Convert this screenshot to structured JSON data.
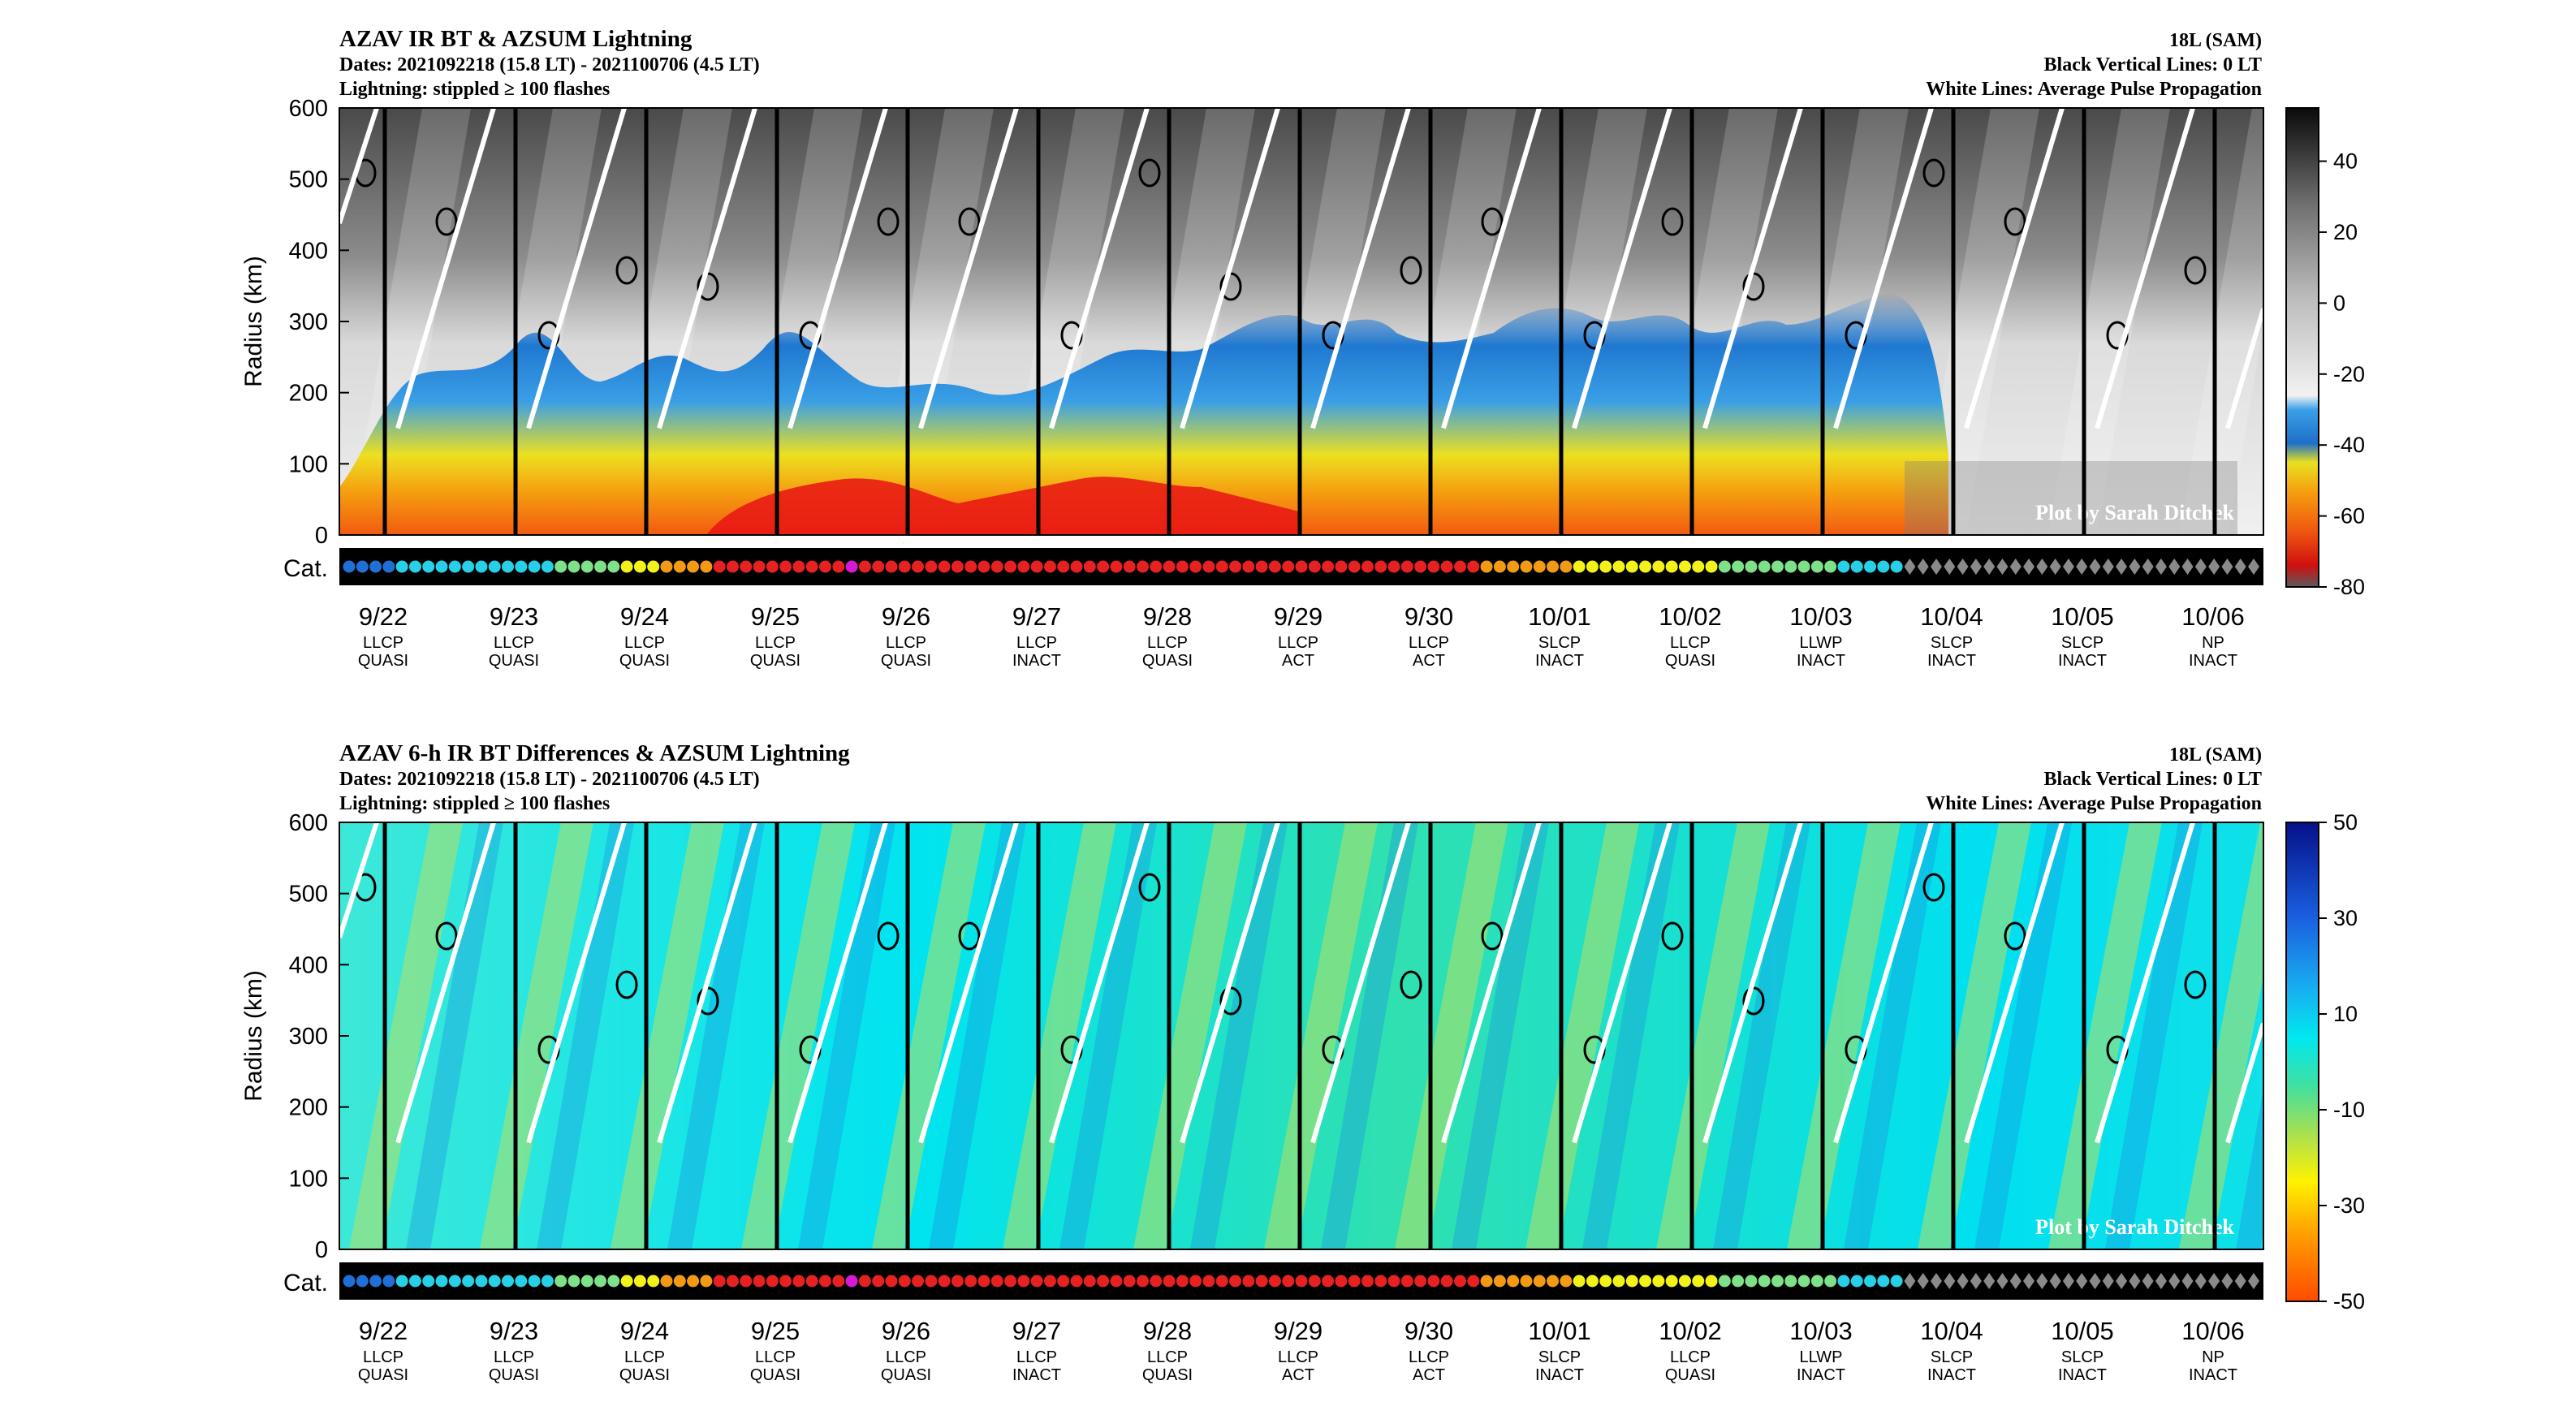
{
  "chart_data": [
    {
      "type": "heatmap",
      "title_lines": [
        "AZAV IR BT & AZSUM Lightning",
        "Dates: 2021092218 (15.8 LT) - 2021100706 (4.5 LT)",
        "Lightning: stippled ≥ 100 flashes"
      ],
      "right_title_lines": [
        "18L (SAM)",
        "Black Vertical Lines: 0 LT",
        "White Lines: Average Pulse Propagation"
      ],
      "ylabel": "Radius (km)",
      "yticks": [
        "0",
        "100",
        "200",
        "300",
        "400",
        "500",
        "600"
      ],
      "ylim": [
        0,
        600
      ],
      "colorbar": {
        "ticks": [
          "40",
          "20",
          "0",
          "-20",
          "-40",
          "-60",
          "-80"
        ],
        "range": [
          -80,
          55
        ]
      },
      "category_label": "Cat.",
      "watermark": "Plot by Sarah Ditchek"
    },
    {
      "type": "heatmap",
      "title_lines": [
        "AZAV 6-h IR BT Differences & AZSUM Lightning",
        "Dates: 2021092218 (15.8 LT) - 2021100706 (4.5 LT)",
        "Lightning: stippled ≥ 100 flashes"
      ],
      "right_title_lines": [
        "18L (SAM)",
        "Black Vertical Lines: 0 LT",
        "White Lines: Average Pulse Propagation"
      ],
      "ylabel": "Radius (km)",
      "yticks": [
        "0",
        "100",
        "200",
        "300",
        "400",
        "500",
        "600"
      ],
      "ylim": [
        0,
        600
      ],
      "colorbar": {
        "ticks": [
          "50",
          "30",
          "10",
          "-10",
          "-30",
          "-50"
        ],
        "range": [
          -50,
          50
        ]
      },
      "category_label": "Cat.",
      "watermark": "Plot by Sarah Ditchek"
    }
  ],
  "x_axis": {
    "dates": [
      "9/22",
      "9/23",
      "9/24",
      "9/25",
      "9/26",
      "9/27",
      "9/28",
      "9/29",
      "9/30",
      "10/01",
      "10/02",
      "10/03",
      "10/04",
      "10/05",
      "10/06"
    ],
    "regimes": [
      "LLCP",
      "LLCP",
      "LLCP",
      "LLCP",
      "LLCP",
      "LLCP",
      "LLCP",
      "LLCP",
      "LLCP",
      "SLCP",
      "LLCP",
      "LLWP",
      "SLCP",
      "SLCP",
      "NP"
    ],
    "activity": [
      "QUASI",
      "QUASI",
      "QUASI",
      "QUASI",
      "QUASI",
      "INACT",
      "QUASI",
      "ACT",
      "ACT",
      "INACT",
      "QUASI",
      "INACT",
      "INACT",
      "INACT",
      "INACT"
    ]
  },
  "category_strip": {
    "colors": {
      "TD": "#1f6fd6",
      "TS": "#27d0e6",
      "C1": "#7fe08a",
      "C2": "#f2f21a",
      "C3": "#f29a14",
      "C4": "#e62121",
      "C5": "#d41ad4",
      "Dissipated": "#8a8a8a"
    },
    "sequence": [
      "TD",
      "TD",
      "TD",
      "TD",
      "TS",
      "TS",
      "TS",
      "TS",
      "TS",
      "TS",
      "TS",
      "TS",
      "TS",
      "TS",
      "TS",
      "TS",
      "C1",
      "C1",
      "C1",
      "C1",
      "C1",
      "C2",
      "C2",
      "C2",
      "C3",
      "C3",
      "C3",
      "C3",
      "C4",
      "C4",
      "C4",
      "C4",
      "C4",
      "C4",
      "C4",
      "C4",
      "C4",
      "C4",
      "C5",
      "C4",
      "C4",
      "C4",
      "C4",
      "C4",
      "C4",
      "C4",
      "C4",
      "C4",
      "C4",
      "C4",
      "C4",
      "C4",
      "C4",
      "C4",
      "C4",
      "C4",
      "C4",
      "C4",
      "C4",
      "C4",
      "C4",
      "C4",
      "C4",
      "C4",
      "C4",
      "C4",
      "C4",
      "C4",
      "C4",
      "C4",
      "C4",
      "C4",
      "C4",
      "C4",
      "C4",
      "C4",
      "C4",
      "C4",
      "C4",
      "C4",
      "C4",
      "C4",
      "C4",
      "C4",
      "C4",
      "C4",
      "C3",
      "C3",
      "C3",
      "C3",
      "C3",
      "C3",
      "C3",
      "C2",
      "C2",
      "C2",
      "C2",
      "C2",
      "C2",
      "C2",
      "C2",
      "C2",
      "C2",
      "C2",
      "C1",
      "C1",
      "C1",
      "C1",
      "C1",
      "C1",
      "C1",
      "C1",
      "C1",
      "TS",
      "TS",
      "TS",
      "TS",
      "TS",
      "Dissipated",
      "Dissipated",
      "Dissipated",
      "Dissipated",
      "Dissipated",
      "Dissipated",
      "Dissipated",
      "Dissipated",
      "Dissipated",
      "Dissipated",
      "Dissipated",
      "Dissipated",
      "Dissipated",
      "Dissipated",
      "Dissipated",
      "Dissipated",
      "Dissipated",
      "Dissipated",
      "Dissipated",
      "Dissipated",
      "Dissipated",
      "Dissipated",
      "Dissipated",
      "Dissipated",
      "Dissipated",
      "Dissipated",
      "Dissipated"
    ]
  }
}
